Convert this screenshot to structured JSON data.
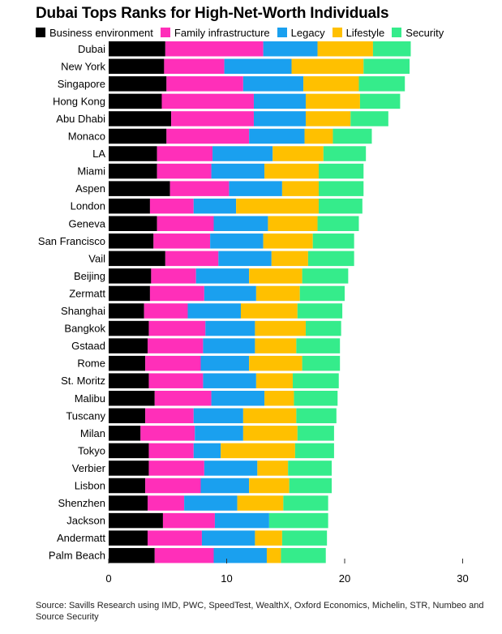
{
  "chart_data": {
    "type": "bar",
    "orientation": "horizontal",
    "stacked": true,
    "title": "Dubai Tops Ranks for High-Net-Worth Individuals",
    "categories": [
      "Dubai",
      "New York",
      "Singapore",
      "Hong Kong",
      "Abu Dhabi",
      "Monaco",
      "LA",
      "Miami",
      "Aspen",
      "London",
      "Geneva",
      "San Francisco",
      "Vail",
      "Beijing",
      "Zermatt",
      "Shanghai",
      "Bangkok",
      "Gstaad",
      "Rome",
      "St. Moritz",
      "Malibu",
      "Tuscany",
      "Milan",
      "Tokyo",
      "Verbier",
      "Lisbon",
      "Shenzhen",
      "Jackson",
      "Andermatt",
      "Palm Beach"
    ],
    "series": [
      {
        "name": "Business environment",
        "color": "#000000",
        "values": [
          4.8,
          4.7,
          4.9,
          4.5,
          5.3,
          4.9,
          4.1,
          4.1,
          5.2,
          3.5,
          4.1,
          3.8,
          4.8,
          3.6,
          3.5,
          3.0,
          3.4,
          3.3,
          3.1,
          3.4,
          3.9,
          3.1,
          2.7,
          3.4,
          3.4,
          3.1,
          3.3,
          4.6,
          3.3,
          3.9
        ]
      },
      {
        "name": "Family infrastructure",
        "color": "#ff2fb9",
        "values": [
          8.3,
          5.1,
          6.5,
          7.8,
          7.0,
          7.0,
          4.7,
          4.6,
          5.0,
          3.7,
          4.8,
          4.8,
          4.5,
          3.8,
          4.6,
          3.7,
          4.8,
          4.7,
          4.7,
          4.6,
          4.8,
          4.1,
          4.6,
          3.8,
          4.7,
          4.7,
          3.1,
          4.4,
          4.6,
          5.0
        ]
      },
      {
        "name": "Legacy",
        "color": "#1aa0ef",
        "values": [
          4.6,
          5.7,
          5.1,
          4.4,
          4.4,
          4.7,
          5.1,
          4.5,
          4.5,
          3.6,
          4.6,
          4.5,
          4.5,
          4.5,
          4.4,
          4.5,
          4.2,
          4.4,
          4.1,
          4.5,
          4.5,
          4.2,
          4.1,
          2.3,
          4.5,
          4.1,
          4.5,
          4.6,
          4.5,
          4.5
        ]
      },
      {
        "name": "Lifestyle",
        "color": "#ffc000",
        "values": [
          4.7,
          6.1,
          4.7,
          4.6,
          3.8,
          2.4,
          4.3,
          4.6,
          3.1,
          7.0,
          4.2,
          4.2,
          3.1,
          4.5,
          3.7,
          4.8,
          4.3,
          3.5,
          4.5,
          3.1,
          2.5,
          4.5,
          4.6,
          6.3,
          2.6,
          3.4,
          3.9,
          0.0,
          2.3,
          1.2
        ]
      },
      {
        "name": "Security",
        "color": "#35ec8b",
        "values": [
          3.2,
          3.9,
          3.9,
          3.4,
          3.2,
          3.3,
          3.6,
          3.8,
          3.8,
          3.7,
          3.5,
          3.5,
          3.9,
          3.9,
          3.8,
          3.8,
          3.0,
          3.7,
          3.2,
          3.9,
          3.7,
          3.4,
          3.1,
          3.3,
          3.7,
          3.6,
          3.8,
          5.0,
          3.8,
          3.8
        ]
      }
    ],
    "xticks": [
      0,
      10,
      20,
      30
    ],
    "xlim": [
      0,
      30
    ],
    "grid": false,
    "legend_position": "top-left"
  },
  "footer": {
    "source": "Source: Savills Research using IMD, PWC, SpeedTest, WealthX, Oxford Economics, Michelin, STR, Numbeo and Source Security"
  }
}
